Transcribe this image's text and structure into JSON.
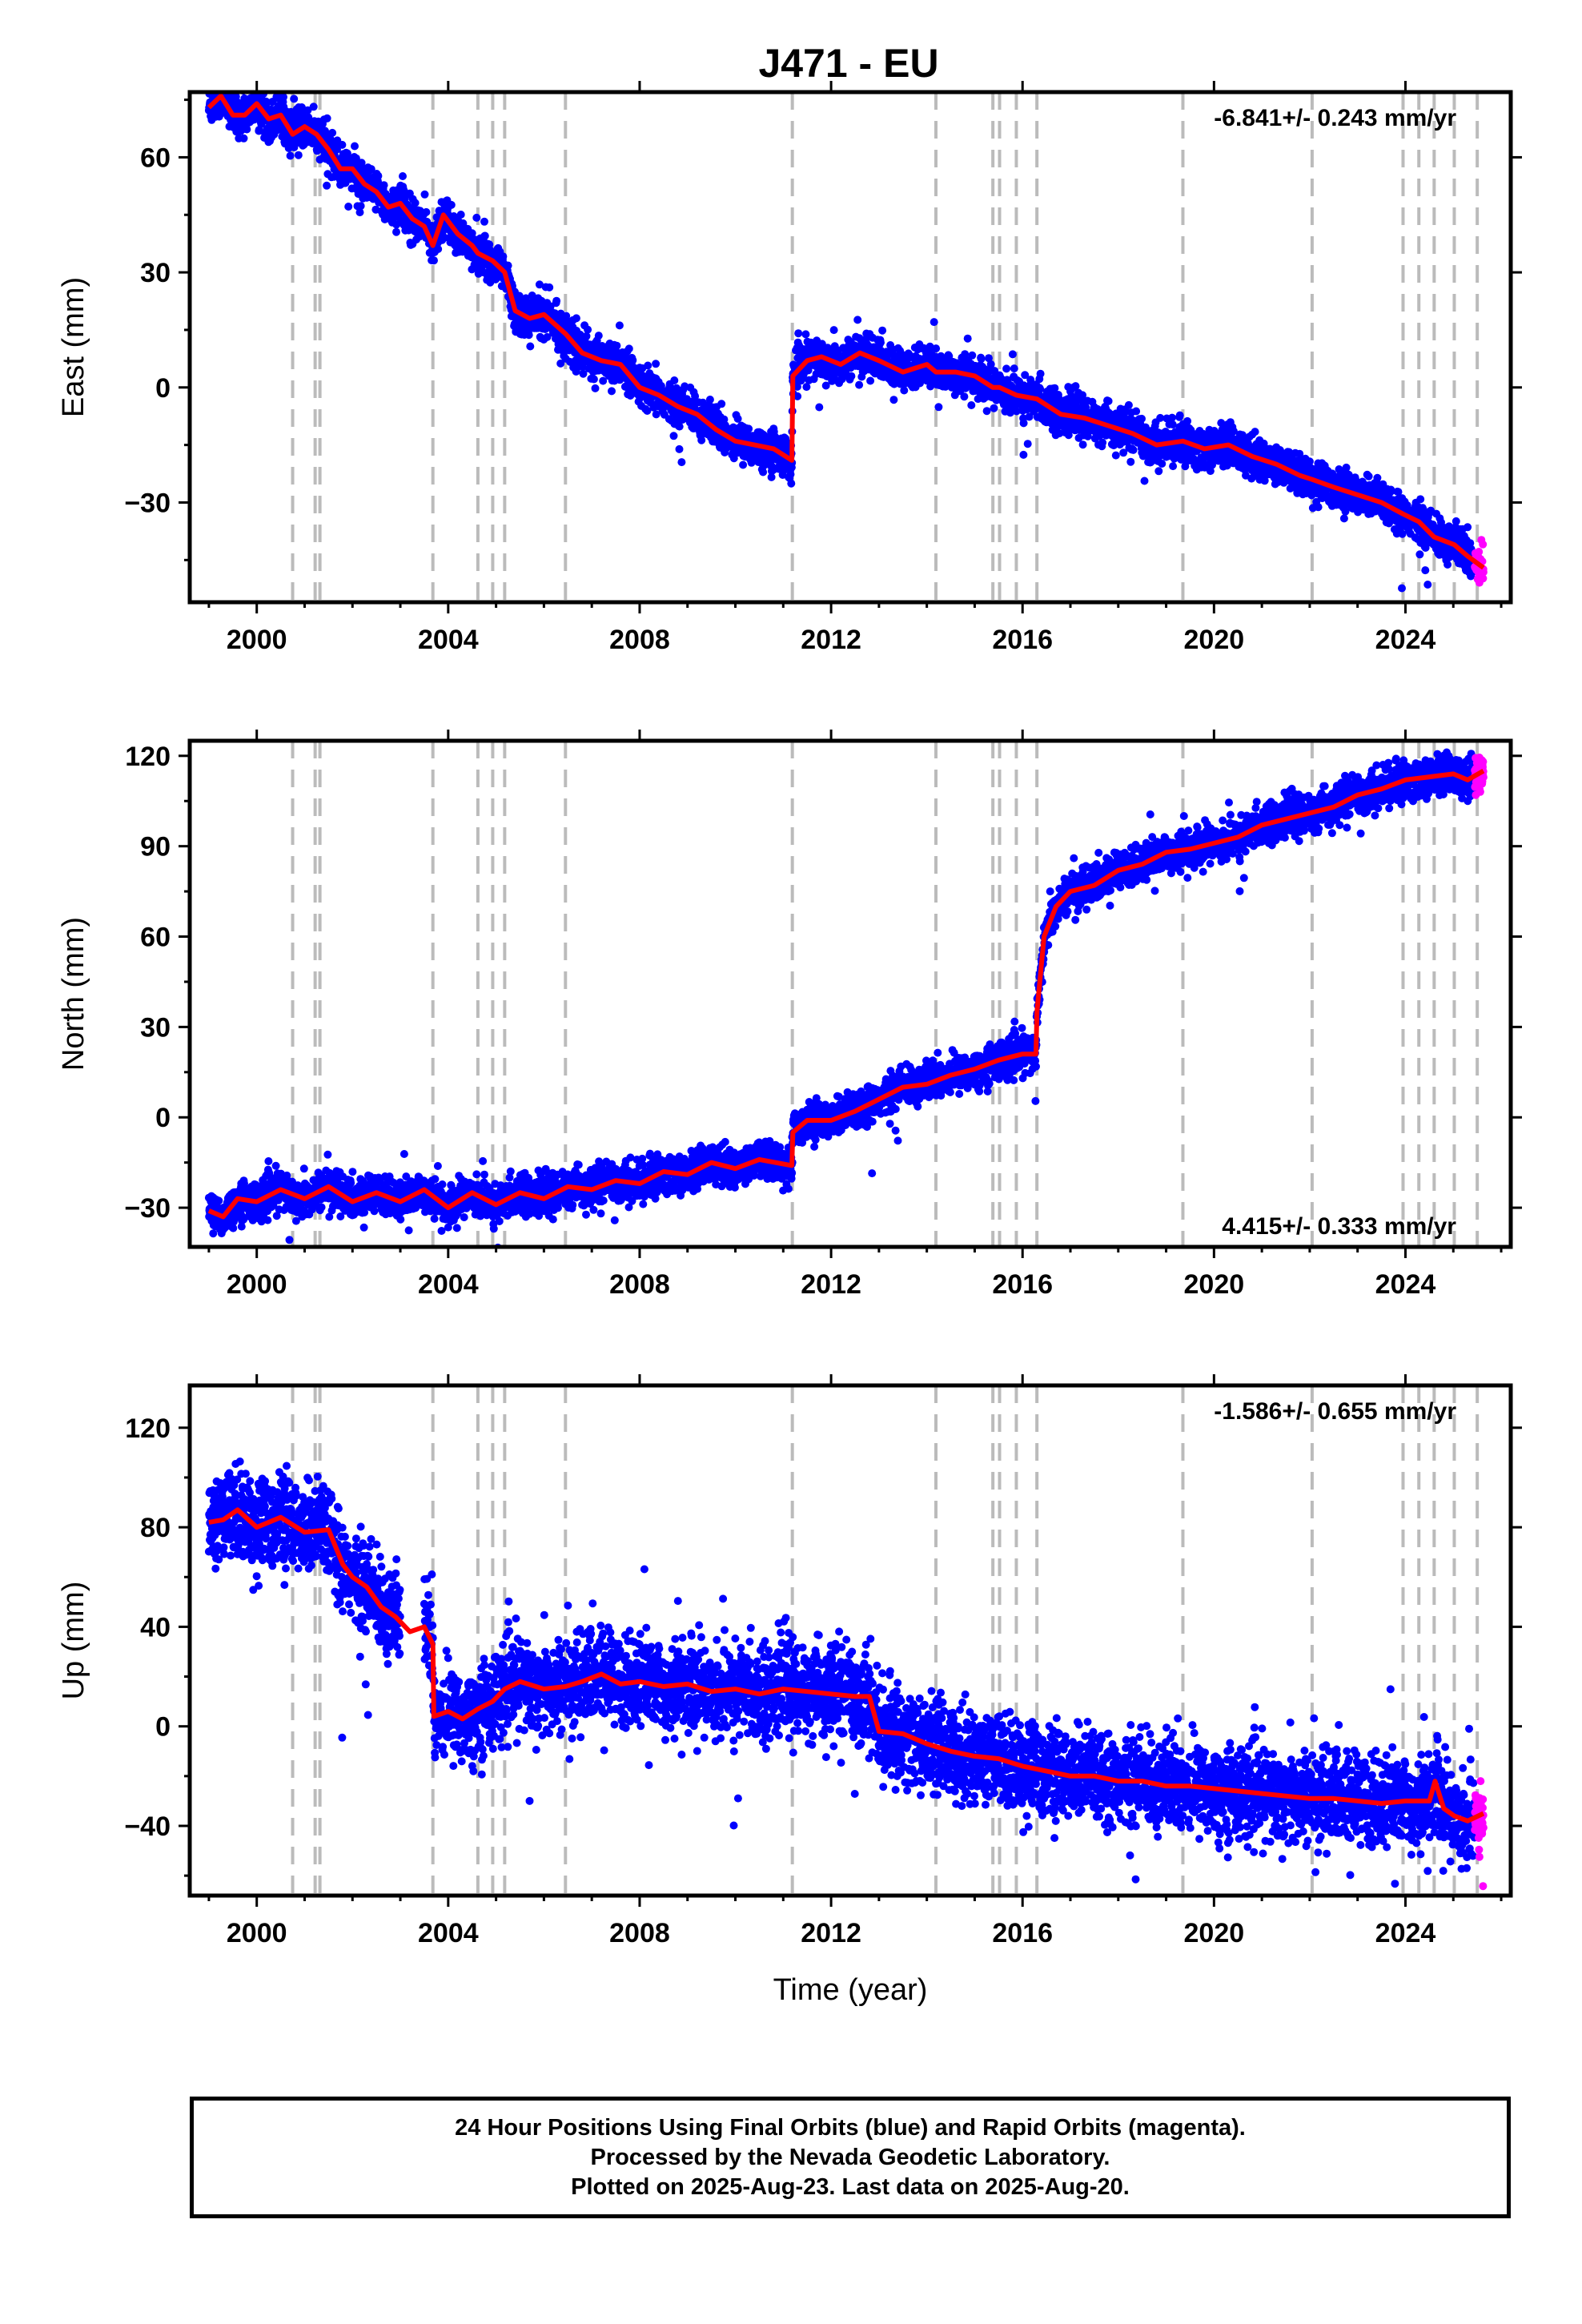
{
  "title": "J471 - EU",
  "footer": {
    "line1": "24 Hour Positions Using Final Orbits (blue) and Rapid Orbits (magenta).",
    "line2": "Processed by the Nevada Geodetic Laboratory.",
    "line3": "Plotted on 2025-Aug-23. Last data on 2025-Aug-20."
  },
  "colors": {
    "final_orbits": "#0000ff",
    "rapid_orbits": "#ff00ff",
    "model": "#ff0000",
    "event_lines": "#bbbbbb"
  },
  "chart_data": [
    {
      "type": "scatter",
      "ylabel": "East (mm)",
      "xlabel": "",
      "rate_label": "-6.841+/- 0.243 mm/yr",
      "rate_position": "top-right",
      "xlim": [
        1998.6,
        2026.2
      ],
      "ylim": [
        -56,
        77
      ],
      "xticks": [
        2000,
        2004,
        2008,
        2012,
        2016,
        2020,
        2024
      ],
      "yticks": [
        -30,
        0,
        30,
        60
      ],
      "ytick_labels": [
        "−30",
        "0",
        "30",
        "60"
      ],
      "events": [
        2000.75,
        2001.22,
        2001.32,
        2003.68,
        2004.62,
        2004.93,
        2005.18,
        2006.45,
        2011.19,
        2014.19,
        2015.38,
        2015.52,
        2015.87,
        2016.3,
        2019.35,
        2022.05,
        2023.95,
        2024.28,
        2024.6,
        2025.02,
        2025.5
      ],
      "series": [
        {
          "name": "Final Orbits",
          "x_range": [
            1999.0,
            2025.45
          ],
          "scatter_sd": 2.5
        },
        {
          "name": "Rapid Orbits",
          "x_range": [
            2025.45,
            2025.63
          ],
          "scatter_sd": 2.5
        }
      ],
      "model_x": [
        1999.0,
        1999.25,
        1999.5,
        1999.75,
        2000.0,
        2000.25,
        2000.5,
        2000.75,
        2001.0,
        2001.25,
        2001.5,
        2001.75,
        2002.0,
        2002.25,
        2002.5,
        2002.75,
        2003.0,
        2003.25,
        2003.5,
        2003.68,
        2003.9,
        2004.2,
        2004.5,
        2004.62,
        2004.93,
        2005.18,
        2005.4,
        2005.7,
        2006.0,
        2006.45,
        2006.8,
        2007.2,
        2007.6,
        2008.0,
        2008.4,
        2008.8,
        2009.2,
        2009.6,
        2010.0,
        2010.4,
        2010.8,
        2011.18,
        2011.2,
        2011.5,
        2011.8,
        2012.2,
        2012.6,
        2013.0,
        2013.5,
        2014.0,
        2014.19,
        2014.6,
        2015.0,
        2015.38,
        2015.52,
        2015.87,
        2016.3,
        2016.8,
        2017.3,
        2017.8,
        2018.3,
        2018.8,
        2019.35,
        2019.8,
        2020.3,
        2020.8,
        2021.3,
        2021.8,
        2022.05,
        2022.5,
        2023.0,
        2023.5,
        2023.95,
        2024.28,
        2024.6,
        2025.02,
        2025.3,
        2025.63
      ],
      "model_y": [
        73,
        76,
        71,
        71,
        74,
        70,
        71,
        66,
        68,
        66,
        62,
        57,
        57,
        53,
        51,
        47,
        48,
        44,
        42,
        37,
        45,
        40,
        37,
        35,
        33,
        30,
        20,
        18,
        19,
        14,
        9,
        7,
        6,
        0,
        -2,
        -5,
        -7,
        -11,
        -14,
        -15,
        -16,
        -19,
        3,
        7,
        8,
        6,
        9,
        7,
        4,
        6,
        4,
        4,
        3,
        0,
        0,
        -2,
        -3,
        -7,
        -8,
        -10,
        -12,
        -15,
        -14,
        -16,
        -15,
        -18,
        -20,
        -23,
        -24,
        -26,
        -28,
        -30,
        -33,
        -35,
        -39,
        -41,
        -44,
        -47
      ]
    },
    {
      "type": "scatter",
      "ylabel": "North (mm)",
      "xlabel": "",
      "rate_label": "4.415+/- 0.333 mm/yr",
      "rate_position": "bottom-right",
      "xlim": [
        1998.6,
        2026.2
      ],
      "ylim": [
        -43,
        125
      ],
      "xticks": [
        2000,
        2004,
        2008,
        2012,
        2016,
        2020,
        2024
      ],
      "yticks": [
        -30,
        0,
        30,
        60,
        90,
        120
      ],
      "ytick_labels": [
        "−30",
        "0",
        "30",
        "60",
        "90",
        "120"
      ],
      "events": [
        2000.75,
        2001.22,
        2001.32,
        2003.68,
        2004.62,
        2004.93,
        2005.18,
        2006.45,
        2011.19,
        2014.19,
        2015.38,
        2015.52,
        2015.87,
        2016.3,
        2019.35,
        2022.05,
        2023.95,
        2024.28,
        2024.6,
        2025.02,
        2025.5
      ],
      "series": [
        {
          "name": "Final Orbits",
          "x_range": [
            1999.0,
            2025.45
          ],
          "scatter_sd": 3.0
        },
        {
          "name": "Rapid Orbits",
          "x_range": [
            2025.45,
            2025.63
          ],
          "scatter_sd": 3.0
        }
      ],
      "model_x": [
        1999.0,
        1999.3,
        1999.6,
        2000.0,
        2000.5,
        2001.0,
        2001.5,
        2002.0,
        2002.5,
        2003.0,
        2003.5,
        2004.0,
        2004.5,
        2005.0,
        2005.5,
        2006.0,
        2006.5,
        2007.0,
        2007.5,
        2008.0,
        2008.5,
        2009.0,
        2009.5,
        2010.0,
        2010.5,
        2011.18,
        2011.2,
        2011.5,
        2012.0,
        2012.5,
        2013.0,
        2013.5,
        2014.0,
        2014.5,
        2015.0,
        2015.5,
        2016.0,
        2016.28,
        2016.3,
        2016.45,
        2016.7,
        2017.0,
        2017.5,
        2018.0,
        2018.5,
        2019.0,
        2019.5,
        2020.0,
        2020.5,
        2021.0,
        2021.5,
        2022.0,
        2022.5,
        2023.0,
        2023.5,
        2024.0,
        2024.5,
        2025.0,
        2025.3,
        2025.63
      ],
      "model_y": [
        -31,
        -33,
        -27,
        -28,
        -24,
        -27,
        -23,
        -28,
        -25,
        -28,
        -24,
        -30,
        -25,
        -29,
        -25,
        -27,
        -23,
        -24,
        -21,
        -22,
        -18,
        -19,
        -15,
        -17,
        -14,
        -16,
        -5,
        -1,
        -1,
        2,
        6,
        10,
        11,
        14,
        16,
        19,
        21,
        21,
        35,
        60,
        70,
        75,
        77,
        82,
        84,
        88,
        89,
        91,
        93,
        97,
        99,
        101,
        103,
        107,
        109,
        112,
        113,
        114,
        112,
        115
      ]
    },
    {
      "type": "scatter",
      "ylabel": "Up (mm)",
      "xlabel": "Time (year)",
      "rate_label": "-1.586+/- 0.655 mm/yr",
      "rate_position": "top-right",
      "xlim": [
        1998.6,
        2026.2
      ],
      "ylim": [
        -68,
        137
      ],
      "xticks": [
        2000,
        2004,
        2008,
        2012,
        2016,
        2020,
        2024
      ],
      "yticks": [
        -40,
        0,
        40,
        80,
        120
      ],
      "ytick_labels": [
        "−40",
        "0",
        "40",
        "80",
        "120"
      ],
      "events": [
        2000.75,
        2001.22,
        2001.32,
        2003.68,
        2004.62,
        2004.93,
        2005.18,
        2006.45,
        2011.19,
        2014.19,
        2015.38,
        2015.52,
        2015.87,
        2016.3,
        2019.35,
        2022.05,
        2023.95,
        2024.28,
        2024.6,
        2025.02,
        2025.5
      ],
      "data_gap": [
        2003.0,
        2003.5
      ],
      "series": [
        {
          "name": "Final Orbits",
          "x_range": [
            1999.0,
            2025.45
          ],
          "scatter_sd": 9.0
        },
        {
          "name": "Rapid Orbits",
          "x_range": [
            2025.45,
            2025.63
          ],
          "scatter_sd": 6.0
        }
      ],
      "model_x": [
        1999.0,
        1999.3,
        1999.6,
        2000.0,
        2000.5,
        2001.0,
        2001.5,
        2001.8,
        2002.0,
        2002.3,
        2002.6,
        2002.9,
        2003.2,
        2003.5,
        2003.68,
        2003.7,
        2004.0,
        2004.3,
        2004.62,
        2004.93,
        2005.18,
        2005.5,
        2006.0,
        2006.45,
        2006.8,
        2007.2,
        2007.6,
        2008.0,
        2008.5,
        2009.0,
        2009.5,
        2010.0,
        2010.5,
        2011.0,
        2011.5,
        2012.0,
        2012.5,
        2012.8,
        2013.0,
        2013.5,
        2014.0,
        2014.5,
        2015.0,
        2015.5,
        2016.0,
        2016.5,
        2017.0,
        2017.5,
        2018.0,
        2018.5,
        2019.0,
        2019.5,
        2020.0,
        2020.5,
        2021.0,
        2021.5,
        2022.0,
        2022.5,
        2023.0,
        2023.5,
        2024.0,
        2024.5,
        2024.62,
        2024.8,
        2025.02,
        2025.3,
        2025.63
      ],
      "model_y": [
        82,
        83,
        87,
        80,
        84,
        78,
        79,
        65,
        60,
        56,
        48,
        44,
        38,
        40,
        33,
        4,
        6,
        3,
        7,
        10,
        15,
        18,
        15,
        16,
        18,
        21,
        17,
        18,
        16,
        17,
        14,
        15,
        13,
        15,
        14,
        13,
        12,
        12,
        -2,
        -3,
        -7,
        -10,
        -12,
        -13,
        -16,
        -18,
        -20,
        -20,
        -22,
        -22,
        -24,
        -24,
        -25,
        -26,
        -27,
        -28,
        -29,
        -29,
        -30,
        -31,
        -30,
        -30,
        -22,
        -33,
        -36,
        -38,
        -35
      ]
    }
  ]
}
